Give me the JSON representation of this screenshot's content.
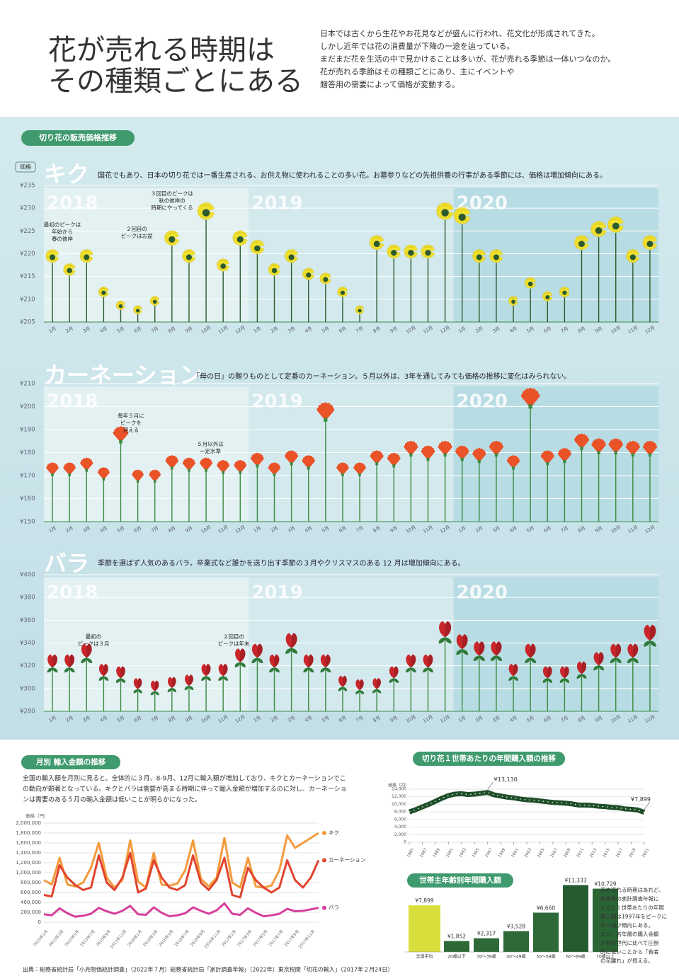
{
  "header": {
    "title_lines": [
      "花が売れる時期は",
      "その種類ごとにある"
    ],
    "paragraph": [
      "日本では古くから生花やお花見などが盛んに行われ、花文化が形成されてきた。",
      "しかし近年では花の消費量が下降の一途を辿っている。",
      "まだまだ花を生活の中で見かけることは多いが、花が売れる季節は一体いつなのか。",
      "花が売れる季節はその種類ごとにあり、主にイベントや",
      "贈答用の需要によって価格が変動する。"
    ]
  },
  "section_label": "切り花の販売価格推移",
  "price_label": "価格",
  "chart_data": [
    {
      "type": "bar",
      "title": "キク",
      "subtitle": "国花でもあり、日本の切り花では一番生産される、お供え物に使われることの多い花。お墓参りなどの先祖供養の行事がある季節には、価格は増加傾向にある。",
      "year_labels": [
        "2018",
        "2019",
        "2020"
      ],
      "categories": [
        "1月",
        "2月",
        "3月",
        "4月",
        "5月",
        "6月",
        "7月",
        "8月",
        "9月",
        "10月",
        "11月",
        "12月",
        "1月",
        "2月",
        "3月",
        "4月",
        "5月",
        "6月",
        "7月",
        "8月",
        "9月",
        "10月",
        "11月",
        "12月",
        "1月",
        "2月",
        "3月",
        "4月",
        "5月",
        "6月",
        "7月",
        "8月",
        "9月",
        "10月",
        "11月",
        "12月"
      ],
      "values": [
        220,
        217,
        220,
        212,
        209,
        208,
        210,
        224,
        220,
        230,
        218,
        224,
        222,
        217,
        220,
        216,
        215,
        212,
        208,
        223,
        221,
        221,
        221,
        230,
        229,
        220,
        220,
        210,
        214,
        211,
        212,
        223,
        226,
        227,
        220,
        223
      ],
      "color": "#f2e22e",
      "ylim": [
        205,
        235
      ],
      "yticks": [
        {
          "value": 205,
          "label": "¥205"
        },
        {
          "value": 210,
          "label": "¥210"
        },
        {
          "value": 215,
          "label": "¥215"
        },
        {
          "value": 220,
          "label": "¥220"
        },
        {
          "value": 225,
          "label": "¥225"
        },
        {
          "value": 230,
          "label": "¥230"
        },
        {
          "value": 235,
          "label": "¥235"
        }
      ],
      "grid": true,
      "annotations": [
        [
          "最初のピークは",
          "年始から",
          "春の彼岸"
        ],
        [
          "２回目の",
          "ピークはお盆"
        ],
        [
          "３回目のピークは",
          "秋の彼岸の",
          "時期にやってくる"
        ]
      ]
    },
    {
      "type": "bar",
      "title": "カーネーション",
      "subtitle": "「母の日」の贈りものとして定番のカーネーション。５月以外は、3年を通してみても価格の推移に変化はみられない。",
      "year_labels": [
        "2018",
        "2019",
        "2020"
      ],
      "categories": [
        "1月",
        "2月",
        "3月",
        "4月",
        "5月",
        "6月",
        "7月",
        "8月",
        "9月",
        "10月",
        "11月",
        "12月",
        "1月",
        "2月",
        "3月",
        "4月",
        "5月",
        "6月",
        "7月",
        "8月",
        "9月",
        "10月",
        "11月",
        "12月",
        "1月",
        "2月",
        "3月",
        "4月",
        "5月",
        "6月",
        "7月",
        "8月",
        "9月",
        "10月",
        "11月",
        "12月"
      ],
      "values": [
        173,
        173,
        175,
        171,
        188,
        170,
        170,
        176,
        175,
        175,
        174,
        174,
        177,
        173,
        178,
        176,
        198,
        173,
        173,
        178,
        177,
        182,
        180,
        182,
        180,
        179,
        182,
        176,
        204,
        178,
        179,
        185,
        183,
        183,
        182,
        182
      ],
      "color": "#ea5228",
      "ylim": [
        150,
        210
      ],
      "yticks": [
        {
          "value": 150,
          "label": "¥150"
        },
        {
          "value": 160,
          "label": "¥160"
        },
        {
          "value": 170,
          "label": "¥170"
        },
        {
          "value": 180,
          "label": "¥180"
        },
        {
          "value": 190,
          "label": "¥190"
        },
        {
          "value": 200,
          "label": "¥200"
        },
        {
          "value": 210,
          "label": "¥210"
        }
      ],
      "grid": true,
      "annotations": [
        [
          "毎年５月に",
          "ピークを",
          "迎える"
        ],
        [
          "５月以外は",
          "一定水準"
        ]
      ]
    },
    {
      "type": "bar",
      "title": "バラ",
      "subtitle": "季節を選ばず人気のあるバラ。卒業式など誰かを送り出す季節の３月やクリスマスのある 12 月は増加傾向にある。",
      "year_labels": [
        "2018",
        "2019",
        "2020"
      ],
      "categories": [
        "1月",
        "2月",
        "3月",
        "4月",
        "5月",
        "6月",
        "7月",
        "8月",
        "9月",
        "10月",
        "11月",
        "12月",
        "1月",
        "2月",
        "3月",
        "4月",
        "5月",
        "6月",
        "7月",
        "8月",
        "9月",
        "10月",
        "11月",
        "12月",
        "1月",
        "2月",
        "3月",
        "4月",
        "5月",
        "6月",
        "7月",
        "8月",
        "9月",
        "10月",
        "11月",
        "12月"
      ],
      "values": [
        325,
        325,
        334,
        317,
        315,
        305,
        303,
        306,
        308,
        317,
        317,
        330,
        334,
        325,
        343,
        325,
        325,
        307,
        304,
        305,
        315,
        325,
        325,
        353,
        342,
        336,
        336,
        317,
        334,
        315,
        315,
        319,
        327,
        334,
        334,
        350
      ],
      "color": "#c8262b",
      "ylim": [
        280,
        400
      ],
      "yticks": [
        {
          "value": 280,
          "label": "¥280"
        },
        {
          "value": 300,
          "label": "¥300"
        },
        {
          "value": 320,
          "label": "¥320"
        },
        {
          "value": 340,
          "label": "¥340"
        },
        {
          "value": 360,
          "label": "¥360"
        },
        {
          "value": 380,
          "label": "¥380"
        },
        {
          "value": 400,
          "label": "¥400"
        }
      ],
      "grid": true,
      "annotations": [
        [
          "最初の",
          "ピークは３月"
        ],
        [
          "２回目の",
          "ピークは年末"
        ]
      ]
    },
    {
      "type": "line",
      "title": "月別 輸入金額の推移",
      "description": [
        "全国の輸入額を月別に見ると、全体的に３月、8-9月、12月に輸入額が増加しており、キクとカーネーションでこ",
        "の動向が顕著となっている。キクとバラは需要が高まる時期に伴って輸入金額が増加するのに対し、カーネーショ",
        "ンは需要のある５月の輸入金額は低いことが明らかになった。"
      ],
      "y_label": "価格（円）",
      "categories": [
        "2015年1月",
        null,
        "2015年3月",
        null,
        "2015年5月",
        null,
        "2015年7月",
        null,
        "2015年9月",
        null,
        "2015年11月",
        null,
        "2016年1月",
        null,
        "2016年3月",
        null,
        "2016年5月",
        null,
        "2016年7月",
        null,
        "2016年9月",
        null,
        "2016年11月",
        null,
        "2017年1月",
        null,
        "2017年3月",
        null,
        "2017年5月",
        null,
        "2017年7月",
        null,
        "2017年9月",
        null,
        "2017年11月",
        null
      ],
      "series": [
        {
          "name": "キク",
          "color": "#f39a3c",
          "values": [
            850000,
            760000,
            1300000,
            760000,
            720000,
            800000,
            1100000,
            1600000,
            900000,
            700000,
            850000,
            1650000,
            820000,
            700000,
            1400000,
            760000,
            740000,
            780000,
            1050000,
            1650000,
            880000,
            720000,
            900000,
            1700000,
            800000,
            700000,
            1300000,
            720000,
            700000,
            740000,
            1050000,
            1750000,
            1500000,
            1600000,
            1700000,
            1800000
          ]
        },
        {
          "name": "カーネーション",
          "color": "#e0442e",
          "values": [
            550000,
            520000,
            1150000,
            900000,
            750000,
            650000,
            700000,
            1350000,
            800000,
            650000,
            900000,
            1400000,
            600000,
            680000,
            1250000,
            900000,
            700000,
            650000,
            750000,
            1350000,
            800000,
            650000,
            850000,
            1300000,
            550000,
            500000,
            1100000,
            850000,
            700000,
            600000,
            700000,
            1250000,
            850000,
            700000,
            900000,
            1250000
          ]
        },
        {
          "name": "バラ",
          "color": "#d63f9c",
          "values": [
            160000,
            140000,
            280000,
            180000,
            110000,
            130000,
            170000,
            290000,
            220000,
            170000,
            230000,
            330000,
            160000,
            150000,
            300000,
            190000,
            120000,
            140000,
            180000,
            300000,
            230000,
            170000,
            240000,
            380000,
            170000,
            150000,
            280000,
            190000,
            120000,
            140000,
            170000,
            270000,
            220000,
            230000,
            260000,
            290000
          ]
        }
      ],
      "ylim": [
        0,
        2000000
      ],
      "yticks": [
        0,
        {
          "value": 200000,
          "label": "200,000"
        },
        {
          "value": 400000,
          "label": "400,000"
        },
        {
          "value": 600000,
          "label": "600,000"
        },
        {
          "value": 800000,
          "label": "800,000"
        },
        {
          "value": 1000000,
          "label": "1,000,000"
        },
        {
          "value": 1200000,
          "label": "1,200,000"
        },
        {
          "value": 1400000,
          "label": "1,400,000"
        },
        {
          "value": 1600000,
          "label": "1,600,000"
        },
        {
          "value": 1800000,
          "label": "1,800,000"
        },
        {
          "value": 2000000,
          "label": "2,000,000"
        }
      ],
      "grid": true
    },
    {
      "type": "line",
      "title": "切り花１世帯あたりの年間購入額の推移",
      "y_label": "価格（円）",
      "x": [
        1985,
        1986,
        1987,
        1988,
        1989,
        1990,
        1991,
        1992,
        1993,
        1994,
        1995,
        1996,
        1997,
        1998,
        1999,
        2000,
        2001,
        2002,
        2003,
        2004,
        2005,
        2006,
        2007,
        2008,
        2009,
        2010,
        2011,
        2012,
        2013,
        2014,
        2015,
        2016,
        2017,
        2018,
        2019,
        2020,
        2021
      ],
      "values": [
        8000,
        8600,
        9300,
        10000,
        10800,
        11600,
        12300,
        12700,
        12800,
        12600,
        12700,
        12900,
        13130,
        12500,
        12200,
        11900,
        11700,
        11400,
        11200,
        11100,
        10900,
        10700,
        10500,
        10400,
        10300,
        10100,
        9800,
        9800,
        9700,
        9500,
        9400,
        9200,
        9100,
        8800,
        8700,
        8500,
        7899
      ],
      "color": "#1f4f2a",
      "xlim": [
        1985,
        2021
      ],
      "xticks": [
        1985,
        1987,
        1989,
        1991,
        1993,
        1995,
        1997,
        1999,
        2001,
        2003,
        2005,
        2007,
        2009,
        2011,
        2013,
        2015,
        2017,
        2019,
        2021
      ],
      "ylim": [
        0,
        14000
      ],
      "yticks": [
        0,
        {
          "value": 2000,
          "label": "2,000"
        },
        {
          "value": 4000,
          "label": "4,000"
        },
        {
          "value": 6000,
          "label": "6,000"
        },
        {
          "value": 8000,
          "label": "8,000"
        },
        {
          "value": 10000,
          "label": "10,000"
        },
        {
          "value": 12000,
          "label": "12,000"
        },
        {
          "value": 14000,
          "label": "14,000"
        }
      ],
      "annotations": [
        {
          "text": "¥13,130",
          "x": 1997
        },
        {
          "text": "¥7,899",
          "x": 2021
        }
      ]
    },
    {
      "type": "bar",
      "title": "世帯主年齢別年間購入額",
      "categories": [
        "全国平均",
        "20歳以下",
        "30〜39歳",
        "40〜49歳",
        "50〜59歳",
        "60〜69歳",
        "70歳以上"
      ],
      "values": [
        7899,
        1852,
        2317,
        3528,
        6660,
        11333,
        10729
      ],
      "value_labels": [
        "¥7,899",
        "¥1,852",
        "¥2,317",
        "¥3,528",
        "¥6,660",
        "¥11,333",
        "¥10,729"
      ],
      "colors": [
        "#d8df3c",
        "#2e6a38",
        "#2e6a38",
        "#2e6a38",
        "#2e6a38",
        "#245c2f",
        "#2a6535"
      ],
      "ylim": [
        0,
        12000
      ],
      "note": [
        "花の売れる時期はあれど、",
        "総務省の家計調査年報に",
        "よると１世帯あたりの年間",
        "購入額は1997年をピークに",
        "年々減少傾向にある。",
        "また、若年層の購入金額",
        "が他の世代に比べて圧倒",
        "的に低いことから「若者",
        "の花離れ」が伺える。"
      ]
    }
  ],
  "source": "出典：総務省統計局「小売物価統計調査」（2022年７月）総務省統計局「家計調査年報」（2022年）東京税関「切花の輸入」（2017年２月24日）"
}
